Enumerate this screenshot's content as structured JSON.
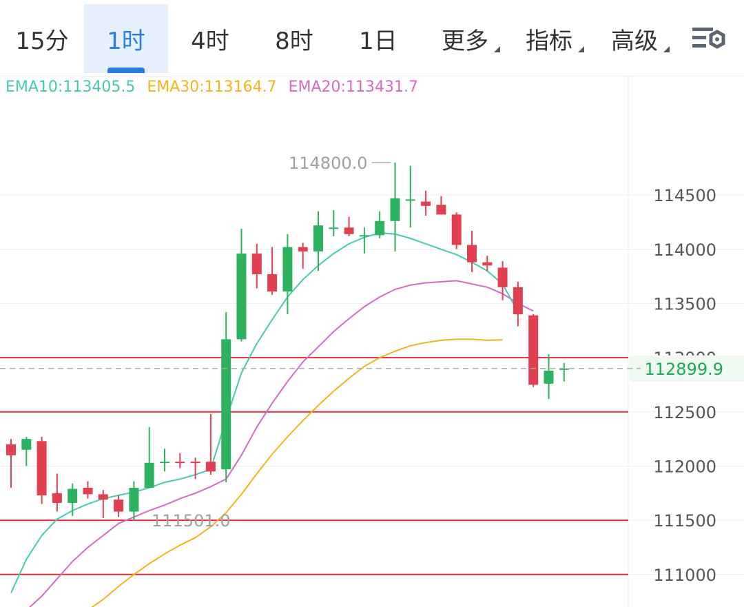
{
  "tabs": [
    {
      "label": "15分",
      "active": false,
      "has_menu": false
    },
    {
      "label": "1时",
      "active": true,
      "has_menu": false
    },
    {
      "label": "4时",
      "active": false,
      "has_menu": false
    },
    {
      "label": "8时",
      "active": false,
      "has_menu": false
    },
    {
      "label": "1日",
      "active": false,
      "has_menu": false
    },
    {
      "label": "更多",
      "active": false,
      "has_menu": true
    },
    {
      "label": "指标",
      "active": false,
      "has_menu": true
    },
    {
      "label": "高级",
      "active": false,
      "has_menu": true
    }
  ],
  "settings_icon": "chart-settings-icon",
  "legend": {
    "ema10": "EMA10:113405.5",
    "ema30": "EMA30:113164.7",
    "ema20": "EMA20:113431.7"
  },
  "colors": {
    "up": "#2db35f",
    "down": "#e0404f",
    "ema10": "#45c9b0",
    "ema20": "#d66bc4",
    "ema30": "#f2b518",
    "level_line": "#e02d3c",
    "grid": "#eeeeee",
    "current_price_text": "#1fa85a",
    "current_price_bg": "#eef9f2",
    "active_tab": "#2b7de0"
  },
  "chart_data": {
    "type": "candlestick",
    "ylim": [
      110700,
      115600
    ],
    "y_ticks": [
      "114500",
      "114000",
      "113500",
      "112500",
      "112000",
      "111500",
      "111000"
    ],
    "current_price": "112899.9",
    "high_label": "114800.0",
    "low_label": "111501.0",
    "horizontal_levels": [
      113000,
      112500,
      111500,
      111000
    ],
    "candles": [
      {
        "o": 112200,
        "h": 112250,
        "l": 111800,
        "c": 112100
      },
      {
        "o": 112150,
        "h": 112270,
        "l": 112000,
        "c": 112250
      },
      {
        "o": 112230,
        "h": 112270,
        "l": 111650,
        "c": 111730
      },
      {
        "o": 111750,
        "h": 111930,
        "l": 111580,
        "c": 111660
      },
      {
        "o": 111660,
        "h": 111840,
        "l": 111540,
        "c": 111790
      },
      {
        "o": 111800,
        "h": 111860,
        "l": 111700,
        "c": 111740
      },
      {
        "o": 111740,
        "h": 111780,
        "l": 111520,
        "c": 111690
      },
      {
        "o": 111690,
        "h": 111730,
        "l": 111530,
        "c": 111580
      },
      {
        "o": 111580,
        "h": 111860,
        "l": 111500,
        "c": 111800
      },
      {
        "o": 111800,
        "h": 112360,
        "l": 111800,
        "c": 112030
      },
      {
        "o": 112040,
        "h": 112160,
        "l": 111950,
        "c": 112040
      },
      {
        "o": 112040,
        "h": 112120,
        "l": 111980,
        "c": 112030
      },
      {
        "o": 112040,
        "h": 112080,
        "l": 111880,
        "c": 112030
      },
      {
        "o": 112040,
        "h": 112480,
        "l": 111920,
        "c": 111950
      },
      {
        "o": 111970,
        "h": 113420,
        "l": 111850,
        "c": 113170
      },
      {
        "o": 113170,
        "h": 114190,
        "l": 113150,
        "c": 113960
      },
      {
        "o": 113960,
        "h": 114050,
        "l": 113640,
        "c": 113770
      },
      {
        "o": 113770,
        "h": 114020,
        "l": 113580,
        "c": 113610
      },
      {
        "o": 113610,
        "h": 114140,
        "l": 113400,
        "c": 114020
      },
      {
        "o": 114020,
        "h": 114060,
        "l": 113820,
        "c": 113980
      },
      {
        "o": 113980,
        "h": 114350,
        "l": 113800,
        "c": 114220
      },
      {
        "o": 114200,
        "h": 114360,
        "l": 114120,
        "c": 114200
      },
      {
        "o": 114200,
        "h": 114300,
        "l": 114120,
        "c": 114140
      },
      {
        "o": 114130,
        "h": 114200,
        "l": 113960,
        "c": 114130
      },
      {
        "o": 114130,
        "h": 114350,
        "l": 114100,
        "c": 114260
      },
      {
        "o": 114260,
        "h": 114800,
        "l": 113980,
        "c": 114470
      },
      {
        "o": 114460,
        "h": 114770,
        "l": 114200,
        "c": 114460
      },
      {
        "o": 114440,
        "h": 114540,
        "l": 114310,
        "c": 114400
      },
      {
        "o": 114410,
        "h": 114490,
        "l": 114320,
        "c": 114320
      },
      {
        "o": 114320,
        "h": 114340,
        "l": 114000,
        "c": 114040
      },
      {
        "o": 114040,
        "h": 114170,
        "l": 113790,
        "c": 113880
      },
      {
        "o": 113880,
        "h": 113940,
        "l": 113800,
        "c": 113850
      },
      {
        "o": 113830,
        "h": 113890,
        "l": 113530,
        "c": 113650
      },
      {
        "o": 113650,
        "h": 113700,
        "l": 113290,
        "c": 113400
      },
      {
        "o": 113390,
        "h": 113400,
        "l": 112730,
        "c": 112750
      },
      {
        "o": 112760,
        "h": 113030,
        "l": 112620,
        "c": 112880
      },
      {
        "o": 112890,
        "h": 112950,
        "l": 112780,
        "c": 112900
      }
    ],
    "ema10": [
      110830,
      111140,
      111360,
      111510,
      111590,
      111650,
      111700,
      111730,
      111760,
      111800,
      111850,
      111880,
      111920,
      111970,
      112430,
      112860,
      113130,
      113350,
      113560,
      113720,
      113850,
      113960,
      114050,
      114110,
      114150,
      114140,
      114100,
      114050,
      114000,
      113950,
      113880,
      113800,
      113680,
      113420
    ],
    "ema20": [
      110670,
      110800,
      110960,
      111120,
      111250,
      111360,
      111470,
      111530,
      111590,
      111640,
      111700,
      111750,
      111810,
      111880,
      112100,
      112360,
      112580,
      112780,
      112960,
      113100,
      113240,
      113360,
      113470,
      113560,
      113630,
      113670,
      113690,
      113700,
      113710,
      113680,
      113650,
      113590,
      113500,
      113430
    ],
    "ema30": [
      110670,
      110770,
      110890,
      111000,
      111100,
      111190,
      111270,
      111340,
      111440,
      111570,
      111740,
      111930,
      112110,
      112270,
      112420,
      112560,
      112690,
      112810,
      112920,
      113000,
      113060,
      113110,
      113140,
      113160,
      113170,
      113170,
      113160,
      113164.7
    ],
    "ema10_start_index": 0,
    "ema20_start_index": 1,
    "ema30_start_index": 5
  }
}
